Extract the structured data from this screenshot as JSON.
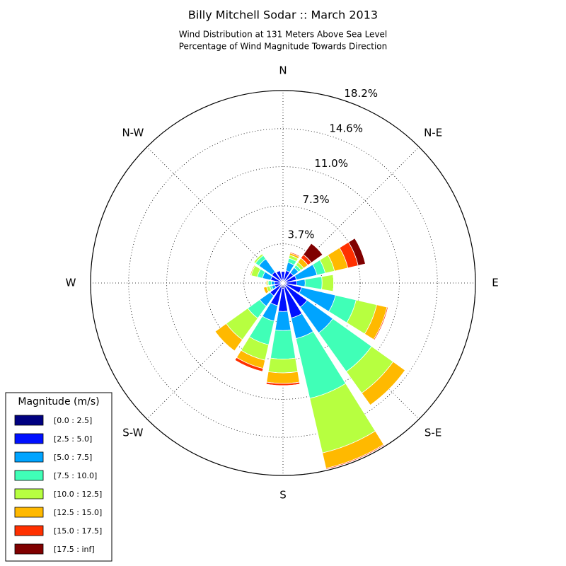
{
  "chart_data": {
    "type": "windrose",
    "title": "Billy Mitchell Sodar :: March 2013",
    "subtitle": [
      "Wind Distribution at 131 Meters Above Sea Level",
      "Percentage of Wind Magnitude Towards Direction"
    ],
    "categories": [
      "N",
      null,
      "N-E",
      null,
      "E",
      null,
      "S-E",
      null,
      "S",
      null,
      "S-W",
      null,
      "W",
      null,
      "N-W",
      null
    ],
    "ylim": [
      0,
      18.2
    ],
    "yticks": [
      {
        "value": 3.7,
        "label": "3.7%"
      },
      {
        "value": 7.3,
        "label": "7.3%"
      },
      {
        "value": 11.0,
        "label": "11.0%"
      },
      {
        "value": 14.6,
        "label": "14.6%"
      },
      {
        "value": 18.2,
        "label": "18.2%"
      }
    ],
    "grid": true,
    "legend_title": "Magnitude (m/s)",
    "legend_position": "lower-left",
    "series": [
      {
        "name": "[0.0 : 2.5]",
        "color": "#000080",
        "values": [
          0.3,
          0.3,
          0.3,
          0.3,
          0.3,
          0.3,
          0.3,
          0.4,
          0.5,
          0.4,
          0.3,
          0.2,
          0.2,
          0.3,
          0.3,
          0.3
        ]
      },
      {
        "name": "[2.5 : 5.0]",
        "color": "#0010ff",
        "values": [
          0.8,
          0.9,
          0.9,
          1.0,
          1.0,
          1.5,
          2.5,
          3.0,
          2.2,
          1.8,
          1.2,
          0.6,
          0.6,
          0.9,
          1.0,
          0.9
        ]
      },
      {
        "name": "[5.0 : 7.5]",
        "color": "#00a4ff",
        "values": [
          0,
          0.8,
          0.6,
          2.0,
          0.8,
          3.3,
          3.0,
          2.0,
          1.8,
          1.5,
          1.2,
          0.3,
          0.3,
          0.8,
          1.5,
          0
        ]
      },
      {
        "name": "[7.5 : 10.0]",
        "color": "#40ffb7",
        "values": [
          0,
          0.4,
          0.3,
          0.8,
          1.6,
          2.0,
          4.5,
          5.8,
          2.7,
          2.3,
          1.4,
          0.2,
          0.3,
          0.5,
          0.4,
          0
        ]
      },
      {
        "name": "[10.0 : 12.5]",
        "color": "#b7ff40",
        "values": [
          0,
          0.3,
          0.3,
          0.9,
          1.1,
          2.0,
          2.5,
          5.3,
          1.3,
          1.5,
          2.5,
          0.3,
          0.1,
          0.6,
          0.2,
          0
        ]
      },
      {
        "name": "[12.5 : 15.0]",
        "color": "#ffb900",
        "values": [
          0,
          0.2,
          0.5,
          1.3,
          0,
          1.0,
          1.4,
          1.5,
          1.0,
          0.8,
          1.3,
          0.3,
          0.1,
          0.1,
          0,
          0
        ]
      },
      {
        "name": "[15.0 : 17.5]",
        "color": "#ff3000",
        "values": [
          0,
          0.1,
          0.4,
          1.0,
          0,
          0.1,
          0,
          0.1,
          0.2,
          0.3,
          0,
          0,
          0,
          0,
          0,
          0
        ]
      },
      {
        "name": "[17.5 : inf]",
        "color": "#800000",
        "values": [
          0,
          0,
          1.3,
          0.7,
          0,
          0,
          0,
          0,
          0,
          0,
          0,
          0,
          0,
          0,
          0,
          0
        ]
      }
    ]
  }
}
